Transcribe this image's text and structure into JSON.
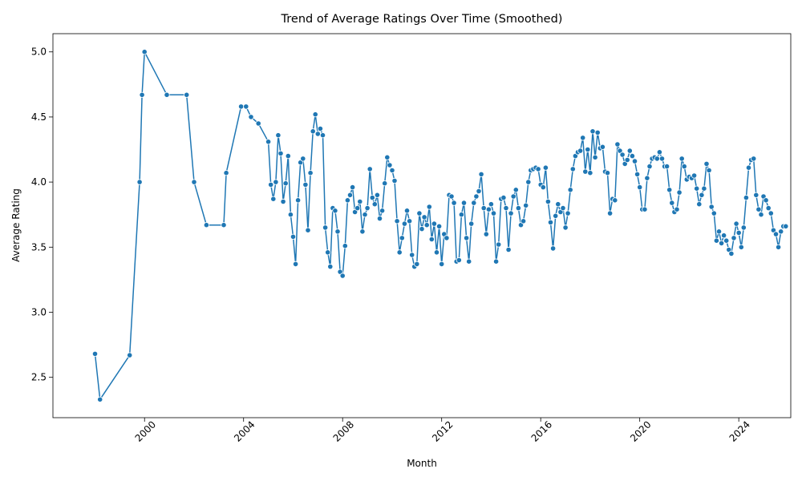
{
  "chart_data": {
    "type": "line",
    "title": "Trend of Average Ratings Over Time (Smoothed)",
    "xlabel": "Month",
    "ylabel": "Average Rating",
    "x_ticks": [
      "2000",
      "2004",
      "2008",
      "2012",
      "2016",
      "2020",
      "2024"
    ],
    "y_ticks": [
      "2.5",
      "3.0",
      "3.5",
      "4.0",
      "4.5",
      "5.0"
    ],
    "xlim": [
      1996.3,
      2026.1
    ],
    "ylim": [
      2.19,
      5.14
    ],
    "grid": false,
    "legend": "none",
    "series_color": "#1f77b4",
    "points": [
      [
        1998.0,
        2.68
      ],
      [
        1998.2,
        2.33
      ],
      [
        1999.4,
        2.67
      ],
      [
        1999.8,
        4.0
      ],
      [
        1999.9,
        4.67
      ],
      [
        2000.0,
        5.0
      ],
      [
        2000.9,
        4.67
      ],
      [
        2001.7,
        4.67
      ],
      [
        2002.0,
        4.0
      ],
      [
        2002.5,
        3.67
      ],
      [
        2003.2,
        3.67
      ],
      [
        2003.3,
        4.07
      ],
      [
        2003.9,
        4.58
      ],
      [
        2004.1,
        4.58
      ],
      [
        2004.3,
        4.5
      ],
      [
        2004.6,
        4.45
      ],
      [
        2005.0,
        4.31
      ],
      [
        2005.1,
        3.98
      ],
      [
        2005.2,
        3.87
      ],
      [
        2005.3,
        4.0
      ],
      [
        2005.4,
        4.36
      ],
      [
        2005.5,
        4.22
      ],
      [
        2005.6,
        3.85
      ],
      [
        2005.7,
        3.99
      ],
      [
        2005.8,
        4.2
      ],
      [
        2005.9,
        3.75
      ],
      [
        2006.0,
        3.58
      ],
      [
        2006.1,
        3.37
      ],
      [
        2006.2,
        3.86
      ],
      [
        2006.3,
        4.15
      ],
      [
        2006.4,
        4.18
      ],
      [
        2006.5,
        3.98
      ],
      [
        2006.6,
        3.63
      ],
      [
        2006.7,
        4.07
      ],
      [
        2006.8,
        4.39
      ],
      [
        2006.9,
        4.52
      ],
      [
        2007.0,
        4.37
      ],
      [
        2007.1,
        4.41
      ],
      [
        2007.2,
        4.36
      ],
      [
        2007.3,
        3.65
      ],
      [
        2007.4,
        3.46
      ],
      [
        2007.5,
        3.35
      ],
      [
        2007.6,
        3.8
      ],
      [
        2007.7,
        3.78
      ],
      [
        2007.8,
        3.62
      ],
      [
        2007.9,
        3.31
      ],
      [
        2008.0,
        3.28
      ],
      [
        2008.1,
        3.51
      ],
      [
        2008.2,
        3.86
      ],
      [
        2008.3,
        3.9
      ],
      [
        2008.4,
        3.96
      ],
      [
        2008.5,
        3.77
      ],
      [
        2008.6,
        3.8
      ],
      [
        2008.7,
        3.85
      ],
      [
        2008.8,
        3.62
      ],
      [
        2008.9,
        3.75
      ],
      [
        2009.0,
        3.8
      ],
      [
        2009.1,
        4.1
      ],
      [
        2009.2,
        3.88
      ],
      [
        2009.3,
        3.83
      ],
      [
        2009.4,
        3.9
      ],
      [
        2009.5,
        3.72
      ],
      [
        2009.6,
        3.78
      ],
      [
        2009.7,
        3.99
      ],
      [
        2009.8,
        4.19
      ],
      [
        2009.9,
        4.13
      ],
      [
        2010.0,
        4.09
      ],
      [
        2010.1,
        4.01
      ],
      [
        2010.2,
        3.7
      ],
      [
        2010.3,
        3.46
      ],
      [
        2010.4,
        3.57
      ],
      [
        2010.5,
        3.68
      ],
      [
        2010.6,
        3.78
      ],
      [
        2010.7,
        3.7
      ],
      [
        2010.8,
        3.44
      ],
      [
        2010.9,
        3.35
      ],
      [
        2011.0,
        3.37
      ],
      [
        2011.1,
        3.76
      ],
      [
        2011.2,
        3.64
      ],
      [
        2011.3,
        3.73
      ],
      [
        2011.4,
        3.67
      ],
      [
        2011.5,
        3.81
      ],
      [
        2011.6,
        3.56
      ],
      [
        2011.7,
        3.68
      ],
      [
        2011.8,
        3.46
      ],
      [
        2011.9,
        3.66
      ],
      [
        2012.0,
        3.37
      ],
      [
        2012.1,
        3.6
      ],
      [
        2012.2,
        3.57
      ],
      [
        2012.3,
        3.9
      ],
      [
        2012.4,
        3.89
      ],
      [
        2012.5,
        3.84
      ],
      [
        2012.6,
        3.39
      ],
      [
        2012.7,
        3.4
      ],
      [
        2012.8,
        3.75
      ],
      [
        2012.9,
        3.84
      ],
      [
        2013.0,
        3.57
      ],
      [
        2013.1,
        3.39
      ],
      [
        2013.2,
        3.68
      ],
      [
        2013.3,
        3.84
      ],
      [
        2013.4,
        3.89
      ],
      [
        2013.5,
        3.93
      ],
      [
        2013.6,
        4.06
      ],
      [
        2013.7,
        3.8
      ],
      [
        2013.8,
        3.6
      ],
      [
        2013.9,
        3.79
      ],
      [
        2014.0,
        3.83
      ],
      [
        2014.1,
        3.76
      ],
      [
        2014.2,
        3.39
      ],
      [
        2014.3,
        3.52
      ],
      [
        2014.4,
        3.87
      ],
      [
        2014.5,
        3.88
      ],
      [
        2014.6,
        3.8
      ],
      [
        2014.7,
        3.48
      ],
      [
        2014.8,
        3.76
      ],
      [
        2014.9,
        3.89
      ],
      [
        2015.0,
        3.94
      ],
      [
        2015.1,
        3.8
      ],
      [
        2015.2,
        3.67
      ],
      [
        2015.3,
        3.7
      ],
      [
        2015.4,
        3.82
      ],
      [
        2015.5,
        4.0
      ],
      [
        2015.6,
        4.09
      ],
      [
        2015.7,
        4.1
      ],
      [
        2015.8,
        4.11
      ],
      [
        2015.9,
        4.1
      ],
      [
        2016.0,
        3.98
      ],
      [
        2016.1,
        3.96
      ],
      [
        2016.2,
        4.11
      ],
      [
        2016.3,
        3.85
      ],
      [
        2016.4,
        3.69
      ],
      [
        2016.5,
        3.49
      ],
      [
        2016.6,
        3.74
      ],
      [
        2016.7,
        3.83
      ],
      [
        2016.8,
        3.77
      ],
      [
        2016.9,
        3.8
      ],
      [
        2017.0,
        3.65
      ],
      [
        2017.1,
        3.76
      ],
      [
        2017.2,
        3.94
      ],
      [
        2017.3,
        4.1
      ],
      [
        2017.4,
        4.2
      ],
      [
        2017.5,
        4.23
      ],
      [
        2017.6,
        4.24
      ],
      [
        2017.7,
        4.34
      ],
      [
        2017.8,
        4.08
      ],
      [
        2017.9,
        4.25
      ],
      [
        2018.0,
        4.07
      ],
      [
        2018.1,
        4.39
      ],
      [
        2018.2,
        4.19
      ],
      [
        2018.3,
        4.38
      ],
      [
        2018.4,
        4.26
      ],
      [
        2018.5,
        4.27
      ],
      [
        2018.6,
        4.08
      ],
      [
        2018.7,
        4.07
      ],
      [
        2018.8,
        3.76
      ],
      [
        2018.9,
        3.87
      ],
      [
        2019.0,
        3.86
      ],
      [
        2019.1,
        4.29
      ],
      [
        2019.2,
        4.24
      ],
      [
        2019.3,
        4.21
      ],
      [
        2019.4,
        4.14
      ],
      [
        2019.5,
        4.17
      ],
      [
        2019.6,
        4.24
      ],
      [
        2019.7,
        4.2
      ],
      [
        2019.8,
        4.16
      ],
      [
        2019.9,
        4.06
      ],
      [
        2020.0,
        3.96
      ],
      [
        2020.1,
        3.79
      ],
      [
        2020.2,
        3.79
      ],
      [
        2020.3,
        4.03
      ],
      [
        2020.4,
        4.12
      ],
      [
        2020.5,
        4.18
      ],
      [
        2020.6,
        4.19
      ],
      [
        2020.7,
        4.18
      ],
      [
        2020.8,
        4.23
      ],
      [
        2020.9,
        4.18
      ],
      [
        2021.0,
        4.12
      ],
      [
        2021.1,
        4.12
      ],
      [
        2021.2,
        3.94
      ],
      [
        2021.3,
        3.84
      ],
      [
        2021.4,
        3.77
      ],
      [
        2021.5,
        3.79
      ],
      [
        2021.6,
        3.92
      ],
      [
        2021.7,
        4.18
      ],
      [
        2021.8,
        4.12
      ],
      [
        2021.9,
        4.02
      ],
      [
        2022.0,
        4.04
      ],
      [
        2022.1,
        4.03
      ],
      [
        2022.2,
        4.05
      ],
      [
        2022.3,
        3.95
      ],
      [
        2022.4,
        3.83
      ],
      [
        2022.5,
        3.9
      ],
      [
        2022.6,
        3.95
      ],
      [
        2022.7,
        4.14
      ],
      [
        2022.8,
        4.09
      ],
      [
        2022.9,
        3.81
      ],
      [
        2023.0,
        3.76
      ],
      [
        2023.1,
        3.55
      ],
      [
        2023.2,
        3.62
      ],
      [
        2023.3,
        3.53
      ],
      [
        2023.4,
        3.59
      ],
      [
        2023.5,
        3.55
      ],
      [
        2023.6,
        3.48
      ],
      [
        2023.7,
        3.45
      ],
      [
        2023.8,
        3.57
      ],
      [
        2023.9,
        3.68
      ],
      [
        2024.0,
        3.61
      ],
      [
        2024.1,
        3.5
      ],
      [
        2024.2,
        3.65
      ],
      [
        2024.3,
        3.88
      ],
      [
        2024.4,
        4.11
      ],
      [
        2024.5,
        4.17
      ],
      [
        2024.6,
        4.18
      ],
      [
        2024.7,
        3.9
      ],
      [
        2024.8,
        3.79
      ],
      [
        2024.9,
        3.75
      ],
      [
        2025.0,
        3.89
      ],
      [
        2025.1,
        3.86
      ],
      [
        2025.2,
        3.8
      ],
      [
        2025.3,
        3.76
      ],
      [
        2025.4,
        3.63
      ],
      [
        2025.5,
        3.6
      ],
      [
        2025.6,
        3.5
      ],
      [
        2025.7,
        3.62
      ],
      [
        2025.8,
        3.66
      ],
      [
        2025.9,
        3.66
      ]
    ]
  }
}
